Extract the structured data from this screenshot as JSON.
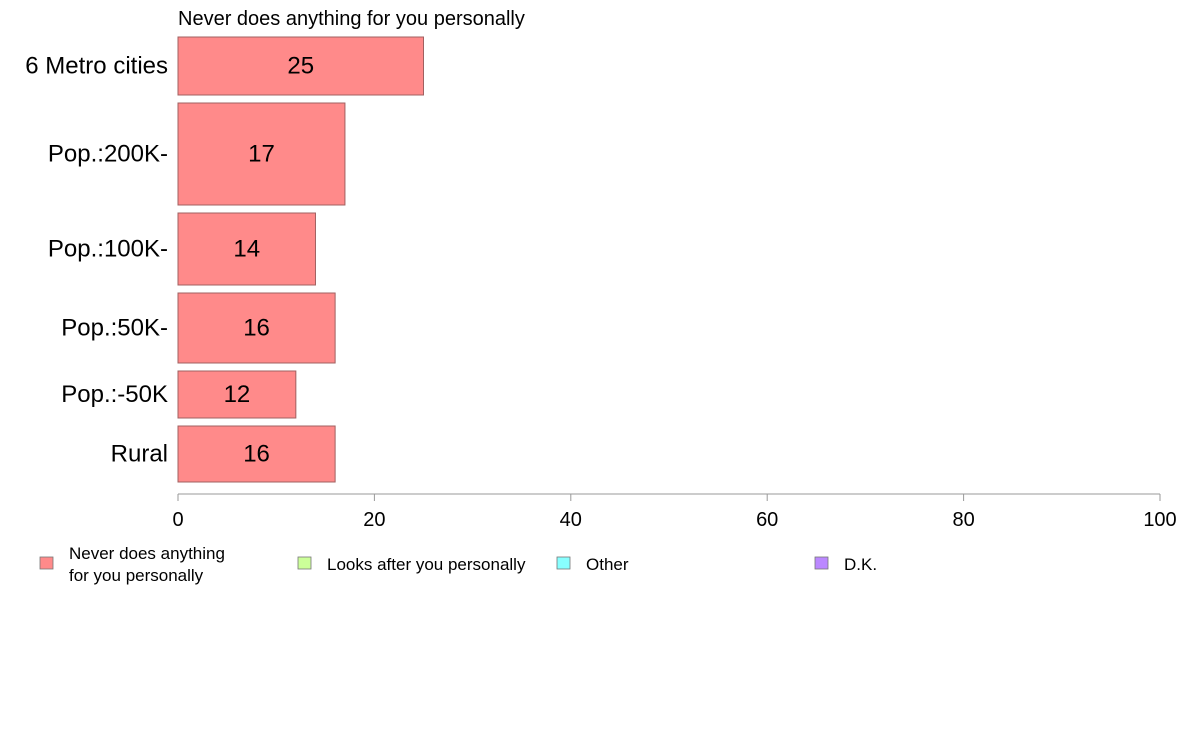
{
  "chart_data": {
    "type": "bar",
    "orientation": "horizontal",
    "title": "Never does anything for you personally",
    "categories": [
      "6 Metro cities",
      "Pop.:200K-",
      "Pop.:100K-",
      "Pop.:50K-",
      "Pop.:-50K",
      "Rural"
    ],
    "values": [
      25,
      17,
      14,
      16,
      12,
      16
    ],
    "value_labels": [
      "25",
      "17",
      "14",
      "16",
      "12",
      "16"
    ],
    "xlim": [
      0,
      100
    ],
    "xticks": [
      "0",
      "20",
      "40",
      "60",
      "80",
      "100"
    ],
    "grid": false,
    "legend": {
      "placement": "bottom",
      "items": [
        {
          "label_lines": [
            "Never does anything",
            "for you personally"
          ],
          "color": "#ff8a8a"
        },
        {
          "label_lines": [
            "Looks after you personally"
          ],
          "color": "#ccff99"
        },
        {
          "label_lines": [
            "Other"
          ],
          "color": "#88ffff"
        },
        {
          "label_lines": [
            "D.K."
          ],
          "color": "#bb88ff"
        }
      ]
    },
    "bar_color": "#ff8a8a",
    "bar_stroke": "#a06060",
    "axis_color": "#999999"
  }
}
